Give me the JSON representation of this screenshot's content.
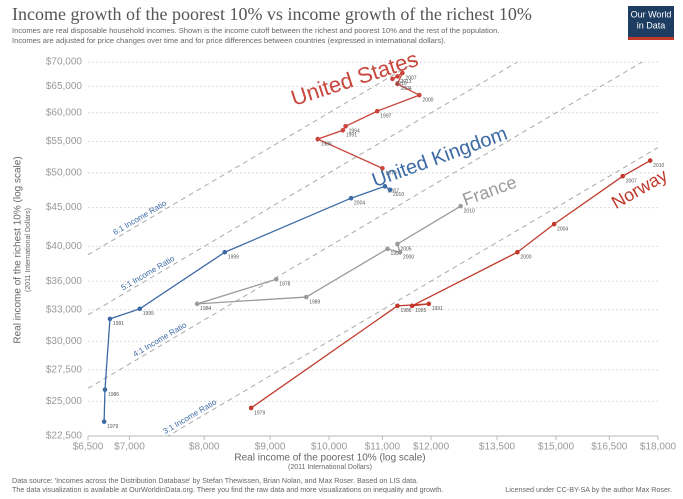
{
  "chart_data": {
    "type": "connected-scatter",
    "title": "Income growth of the poorest 10% vs income growth of the richest 10%",
    "subtitle": [
      "Incomes are real disposable household incomes. Shown is the income cutoff between the richest and poorest 10% and the rest of the population.",
      "Incomes are adjusted for price changes over time and for price differences between countries (expressed in international dollars)."
    ],
    "logo": [
      "Our World",
      "in Data"
    ],
    "x_label": "Real income of the poorest 10% (log scale)",
    "x_sublabel": "(2011 International Dollars)",
    "y_label": "Real income of the richest 10% (log scale)",
    "y_sublabel": "(2011 International Dollars)",
    "x_log": true,
    "y_log": true,
    "grid": true,
    "xlim": [
      6500,
      18000
    ],
    "ylim": [
      22500,
      70000
    ],
    "xticks": [
      {
        "value": 6500,
        "label": "$6,500"
      },
      {
        "value": 7000,
        "label": "$7,000"
      },
      {
        "value": 8000,
        "label": "$8,000"
      },
      {
        "value": 9000,
        "label": "$9,000"
      },
      {
        "value": 10000,
        "label": "$10,000"
      },
      {
        "value": 11000,
        "label": "$11,000"
      },
      {
        "value": 12000,
        "label": "$12,000"
      },
      {
        "value": 13500,
        "label": "$13,500"
      },
      {
        "value": 15000,
        "label": "$15,000"
      },
      {
        "value": 16500,
        "label": "$16,500"
      },
      {
        "value": 18000,
        "label": "$18,000"
      }
    ],
    "yticks": [
      {
        "value": 22500,
        "label": "$22,500"
      },
      {
        "value": 25000,
        "label": "$25,000"
      },
      {
        "value": 27500,
        "label": "$27,500"
      },
      {
        "value": 30000,
        "label": "$30,000"
      },
      {
        "value": 33000,
        "label": "$33,000"
      },
      {
        "value": 36000,
        "label": "$36,000"
      },
      {
        "value": 40000,
        "label": "$40,000"
      },
      {
        "value": 45000,
        "label": "$45,000"
      },
      {
        "value": 50000,
        "label": "$50,000"
      },
      {
        "value": 55000,
        "label": "$55,000"
      },
      {
        "value": 60000,
        "label": "$60,000"
      },
      {
        "value": 65000,
        "label": "$65,000"
      },
      {
        "value": 70000,
        "label": "$70,000"
      }
    ],
    "ratio_lines": [
      {
        "ratio": 6,
        "label": "6:1 Income Ratio"
      },
      {
        "ratio": 5,
        "label": "5:1 Income Ratio"
      },
      {
        "ratio": 4,
        "label": "4:1 Income Ratio"
      },
      {
        "ratio": 3,
        "label": "3:1 Income Ratio"
      }
    ],
    "series": [
      {
        "name": "United States",
        "color": "#c9463d",
        "x": [
          11000,
          9800,
          10250,
          10300,
          10900,
          11750,
          11300,
          11400,
          11200,
          11300
        ],
        "values": [
          50700,
          55400,
          56900,
          57600,
          60300,
          63300,
          65500,
          67700,
          66500,
          67000
        ],
        "point_labels": [
          "1979",
          "1986",
          "1991",
          "1994",
          "1997",
          "2000",
          "2004",
          "2007",
          "2010",
          "2013"
        ]
      },
      {
        "name": "United Kingdom",
        "color": "#3c6aa4",
        "x": [
          6690,
          6700,
          6760,
          7130,
          8300,
          10400,
          11050,
          11150
        ],
        "values": [
          23500,
          25900,
          32100,
          33100,
          39300,
          46300,
          48000,
          47500
        ],
        "point_labels": [
          "1979",
          "1986",
          "1991",
          "1995",
          "1999",
          "2004",
          "2007",
          "2010"
        ]
      },
      {
        "name": "France",
        "color": "#9b9b9b",
        "x": [
          9100,
          7900,
          9600,
          11100,
          11350,
          11300,
          12650
        ],
        "values": [
          36200,
          33600,
          34300,
          39700,
          39300,
          40300,
          45200
        ],
        "point_labels": [
          "1978",
          "1984",
          "1989",
          "1994",
          "2000",
          "2005",
          "2010"
        ]
      },
      {
        "name": "Norway",
        "color": "#c0392b",
        "x": [
          8700,
          11300,
          11950,
          11600,
          14000,
          14950,
          16900,
          17750
        ],
        "values": [
          24500,
          33400,
          33600,
          33400,
          39300,
          42800,
          49500,
          51900
        ],
        "point_labels": [
          "1979",
          "1986",
          "1991",
          "1995",
          "2000",
          "2004",
          "2007",
          "2010"
        ]
      }
    ],
    "source": [
      "Data source: 'Incomes across the Distribution Database' by Stefan Thewissen, Brian Nolan, and Max Roser. Based on LIS data.",
      "The data visualization is available at OurWorldinData.org. There you find the raw data and more visualizations on inequality and growth."
    ],
    "license": "Licensed under CC-BY-SA by the author Max Roser."
  }
}
